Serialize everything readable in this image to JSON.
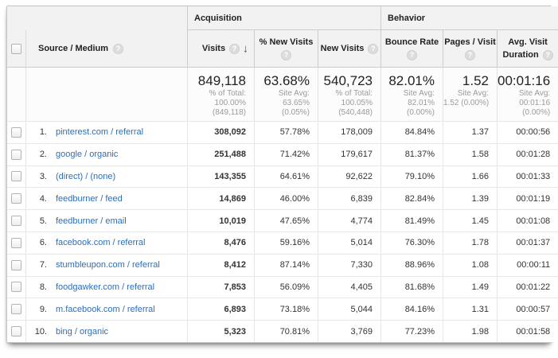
{
  "glyphs": {
    "help": "?",
    "sort_desc": "↓"
  },
  "header": {
    "groups": {
      "acquisition": "Acquisition",
      "behavior": "Behavior"
    },
    "columns": {
      "source_medium": "Source / Medium",
      "visits": "Visits",
      "pct_new_visits": "% New Visits",
      "new_visits": "New Visits",
      "bounce_rate": "Bounce Rate",
      "pages_visit": "Pages / Visit",
      "avg_duration_line1": "Avg. Visit",
      "avg_duration_line2": "Duration"
    }
  },
  "summary": {
    "visits": {
      "value": "849,118",
      "lines": [
        "% of Total:",
        "100.00%",
        "(849,118)"
      ]
    },
    "pct_new_visits": {
      "value": "63.68%",
      "lines": [
        "Site Avg:",
        "63.65%",
        "(0.05%)"
      ]
    },
    "new_visits": {
      "value": "540,723",
      "lines": [
        "% of Total:",
        "100.05%",
        "(540,448)"
      ]
    },
    "bounce_rate": {
      "value": "82.01%",
      "lines": [
        "Site Avg:",
        "82.01%",
        "(0.00%)"
      ]
    },
    "pages_visit": {
      "value": "1.52",
      "lines": [
        "Site Avg:",
        "1.52 (0.00%)"
      ]
    },
    "avg_duration": {
      "value": "00:01:16",
      "lines": [
        "Site Avg:",
        "00:01:16",
        "(0.00%)"
      ]
    }
  },
  "rows": [
    {
      "index": "1.",
      "source": "pinterest.com / referral",
      "visits": "308,092",
      "pct_new": "57.78%",
      "new_visits": "178,009",
      "bounce": "84.84%",
      "pages": "1.37",
      "duration": "00:00:56"
    },
    {
      "index": "2.",
      "source": "google / organic",
      "visits": "251,488",
      "pct_new": "71.42%",
      "new_visits": "179,617",
      "bounce": "81.37%",
      "pages": "1.58",
      "duration": "00:01:28"
    },
    {
      "index": "3.",
      "source": "(direct) / (none)",
      "visits": "143,355",
      "pct_new": "64.61%",
      "new_visits": "92,622",
      "bounce": "79.10%",
      "pages": "1.66",
      "duration": "00:01:33"
    },
    {
      "index": "4.",
      "source": "feedburner / feed",
      "visits": "14,869",
      "pct_new": "46.00%",
      "new_visits": "6,839",
      "bounce": "82.84%",
      "pages": "1.39",
      "duration": "00:01:19"
    },
    {
      "index": "5.",
      "source": "feedburner / email",
      "visits": "10,019",
      "pct_new": "47.65%",
      "new_visits": "4,774",
      "bounce": "81.49%",
      "pages": "1.45",
      "duration": "00:01:08"
    },
    {
      "index": "6.",
      "source": "facebook.com / referral",
      "visits": "8,476",
      "pct_new": "59.16%",
      "new_visits": "5,014",
      "bounce": "76.30%",
      "pages": "1.78",
      "duration": "00:01:37"
    },
    {
      "index": "7.",
      "source": "stumbleupon.com / referral",
      "visits": "8,412",
      "pct_new": "87.14%",
      "new_visits": "7,330",
      "bounce": "88.96%",
      "pages": "1.08",
      "duration": "00:00:11"
    },
    {
      "index": "8.",
      "source": "foodgawker.com / referral",
      "visits": "7,853",
      "pct_new": "56.09%",
      "new_visits": "4,405",
      "bounce": "81.68%",
      "pages": "1.49",
      "duration": "00:01:22"
    },
    {
      "index": "9.",
      "source": "m.facebook.com / referral",
      "visits": "6,893",
      "pct_new": "73.18%",
      "new_visits": "5,044",
      "bounce": "84.16%",
      "pages": "1.31",
      "duration": "00:00:57"
    },
    {
      "index": "10.",
      "source": "bing / organic",
      "visits": "5,323",
      "pct_new": "70.81%",
      "new_visits": "3,769",
      "bounce": "77.23%",
      "pages": "1.98",
      "duration": "00:01:58"
    }
  ]
}
